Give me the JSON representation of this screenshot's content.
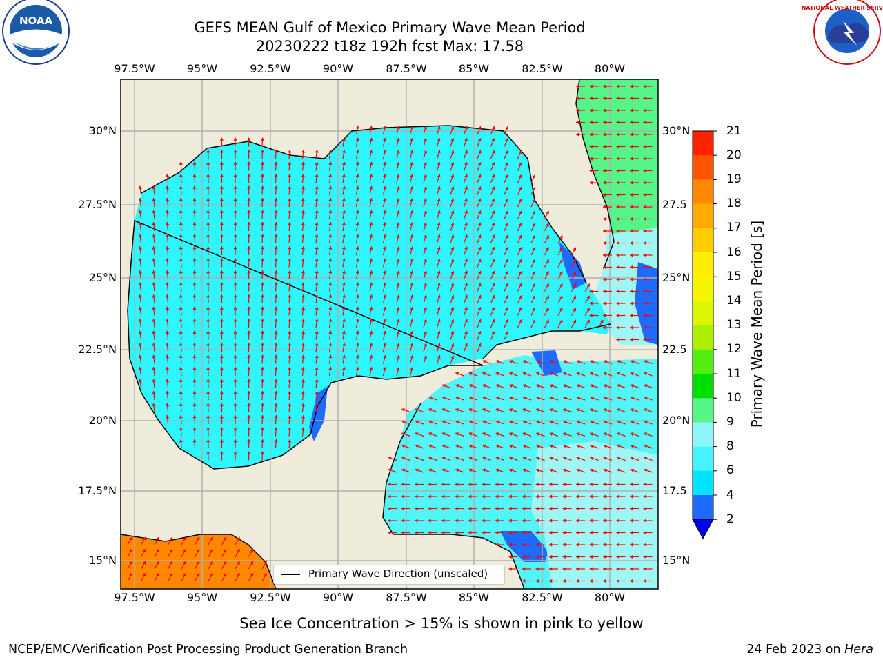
{
  "title": {
    "line1": "GEFS MEAN Gulf of Mexico Primary Wave Mean Period",
    "line2": "20230222 t18z 192h fcst   Max: 17.58"
  },
  "logos": {
    "noaa": "NOAA",
    "nws": "NATIONAL WEATHER SERVICE"
  },
  "lon_labels": [
    "97.5°W",
    "95°W",
    "92.5°W",
    "90°W",
    "87.5°W",
    "85°W",
    "82.5°W",
    "80°W"
  ],
  "lat_labels_left": [
    "30°N",
    "27.5°N",
    "25°N",
    "22.5°N",
    "20°N",
    "17.5°N",
    "15°N"
  ],
  "lat_labels_right": [
    "30°N",
    "27.5",
    "25°N",
    "22.5",
    "20°N",
    "17.5",
    "15°N"
  ],
  "colorbar": {
    "title": "Primary Wave Mean Period [s]",
    "ticks": [
      "21",
      "20",
      "19",
      "18",
      "17",
      "16",
      "15",
      "14",
      "13",
      "12",
      "11",
      "10",
      "9",
      "8",
      "6",
      "4",
      "2"
    ],
    "levels": [
      {
        "from": 2,
        "color": "#1f6bff"
      },
      {
        "from": 4,
        "color": "#00e5ff"
      },
      {
        "from": 6,
        "color": "#45f4ff"
      },
      {
        "from": 8,
        "color": "#8ef6f6"
      },
      {
        "from": 9,
        "color": "#55f58a"
      },
      {
        "from": 10,
        "color": "#00dd00"
      },
      {
        "from": 11,
        "color": "#55ee11"
      },
      {
        "from": 12,
        "color": "#aaf000"
      },
      {
        "from": 13,
        "color": "#ddf500"
      },
      {
        "from": 14,
        "color": "#f5f500"
      },
      {
        "from": 15,
        "color": "#ffee00"
      },
      {
        "from": 16,
        "color": "#ffcc00"
      },
      {
        "from": 17,
        "color": "#ffaa00"
      },
      {
        "from": 18,
        "color": "#ff8800"
      },
      {
        "from": 19,
        "color": "#ff5500"
      },
      {
        "from": 20,
        "color": "#ff2200"
      }
    ],
    "under_color": "#0000ee"
  },
  "legend": {
    "label": "Primary Wave Direction (unscaled)"
  },
  "caption": "Sea Ice Concentration > 15% is shown in pink to yellow",
  "footer": {
    "left": "NCEP/EMC/Verification Post Processing Product Generation Branch",
    "right_prefix": "24 Feb 2023 on ",
    "right_host": "Hera"
  },
  "colors": {
    "land": "#efecdc",
    "gulf": "#2ef6ff",
    "caribbean": "#54f5f7",
    "swell_light": "#9ff7f5",
    "atlantic_green": "#44ee44",
    "pacific": "#ff8800",
    "coastal_blue": "#1f6bff",
    "arrow": "#ff0000"
  }
}
